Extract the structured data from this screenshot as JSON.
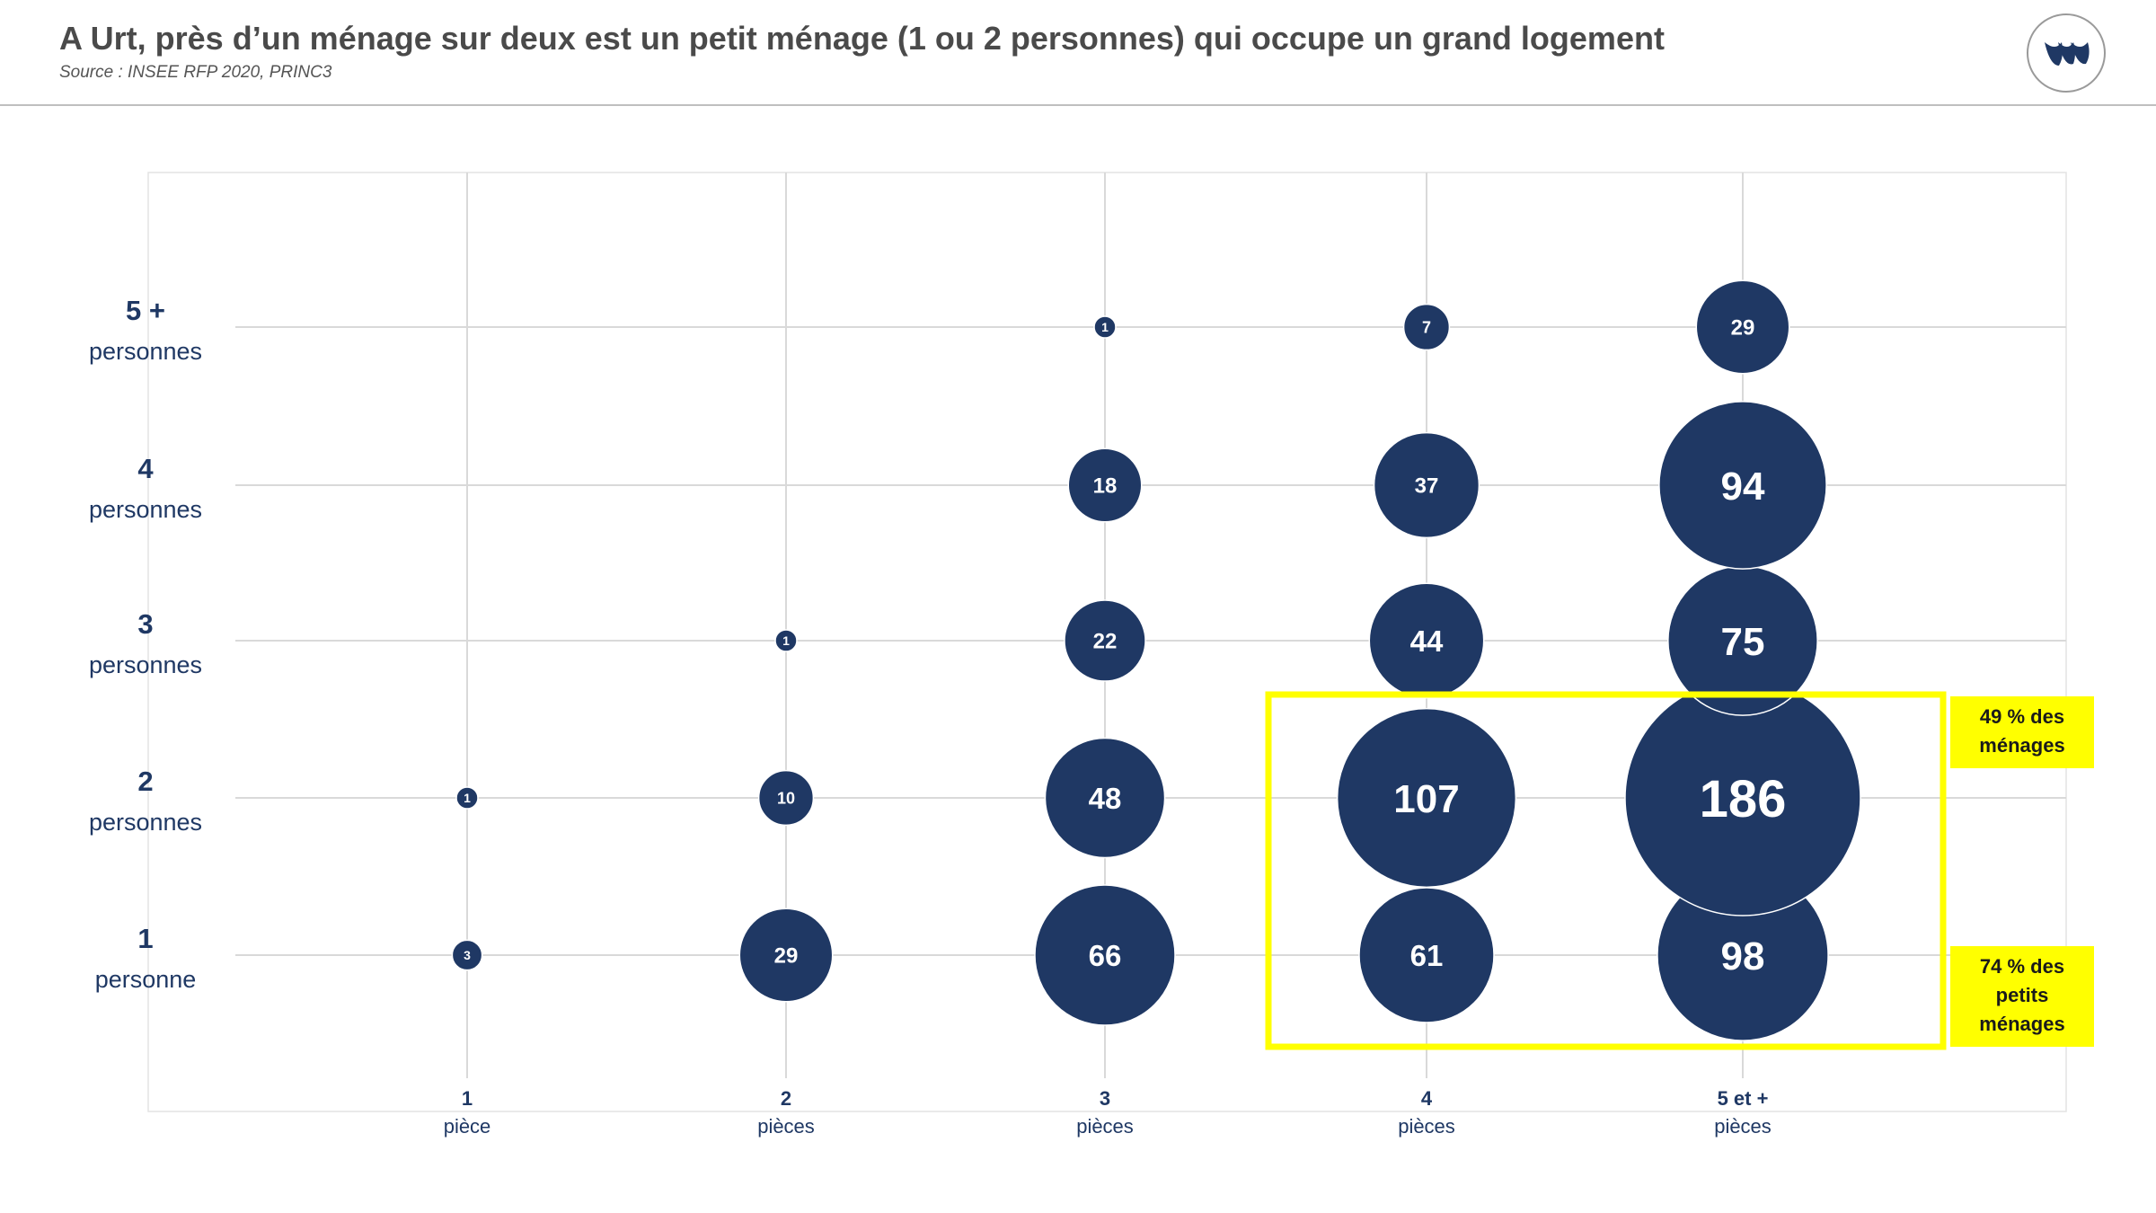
{
  "header": {
    "title": "A Urt, près d’un ménage sur deux est un petit ménage (1 ou 2 personnes) qui occupe un grand logement",
    "source": "Source :  INSEE RFP 2020, PRINC3",
    "logo_icon": "brand-logo-icon"
  },
  "colors": {
    "bubble": "#1f3864",
    "highlight": "#ffff00",
    "label_text": "#1f3864",
    "grid": "#d9d9d9"
  },
  "chart_data": {
    "type": "scatter",
    "title": "A Urt, près d’un ménage sur deux est un petit ménage (1 ou 2 personnes) qui occupe un grand logement",
    "x_categories": [
      [
        "1",
        "pièce"
      ],
      [
        "2",
        "pièces"
      ],
      [
        "3",
        "pièces"
      ],
      [
        "4",
        "pièces"
      ],
      [
        "5 et +",
        "pièces"
      ]
    ],
    "y_categories": [
      [
        "1",
        "personne"
      ],
      [
        "2",
        "personnes"
      ],
      [
        "3",
        "personnes"
      ],
      [
        "4",
        "personnes"
      ],
      [
        "5 +",
        "personnes"
      ]
    ],
    "points": [
      {
        "x": 1,
        "y": 1,
        "value": 3
      },
      {
        "x": 1,
        "y": 2,
        "value": 1
      },
      {
        "x": 2,
        "y": 1,
        "value": 29
      },
      {
        "x": 2,
        "y": 2,
        "value": 10
      },
      {
        "x": 2,
        "y": 3,
        "value": 1
      },
      {
        "x": 3,
        "y": 1,
        "value": 66
      },
      {
        "x": 3,
        "y": 2,
        "value": 48
      },
      {
        "x": 3,
        "y": 3,
        "value": 22
      },
      {
        "x": 3,
        "y": 4,
        "value": 18
      },
      {
        "x": 3,
        "y": 5,
        "value": 1
      },
      {
        "x": 4,
        "y": 1,
        "value": 61
      },
      {
        "x": 4,
        "y": 2,
        "value": 107
      },
      {
        "x": 4,
        "y": 3,
        "value": 44
      },
      {
        "x": 4,
        "y": 4,
        "value": 37
      },
      {
        "x": 4,
        "y": 5,
        "value": 7
      },
      {
        "x": 5,
        "y": 1,
        "value": 98
      },
      {
        "x": 5,
        "y": 2,
        "value": 186
      },
      {
        "x": 5,
        "y": 3,
        "value": 75
      },
      {
        "x": 5,
        "y": 4,
        "value": 94
      },
      {
        "x": 5,
        "y": 5,
        "value": 29
      }
    ],
    "highlight": {
      "x_range": [
        4,
        5
      ],
      "y_range": [
        1,
        2
      ],
      "annotations": [
        {
          "y": 2,
          "lines": [
            "49 % des",
            "ménages"
          ]
        },
        {
          "y": 1,
          "lines": [
            "74 % des",
            "petits",
            "ménages"
          ]
        }
      ]
    },
    "grid": true,
    "legend": "none"
  }
}
